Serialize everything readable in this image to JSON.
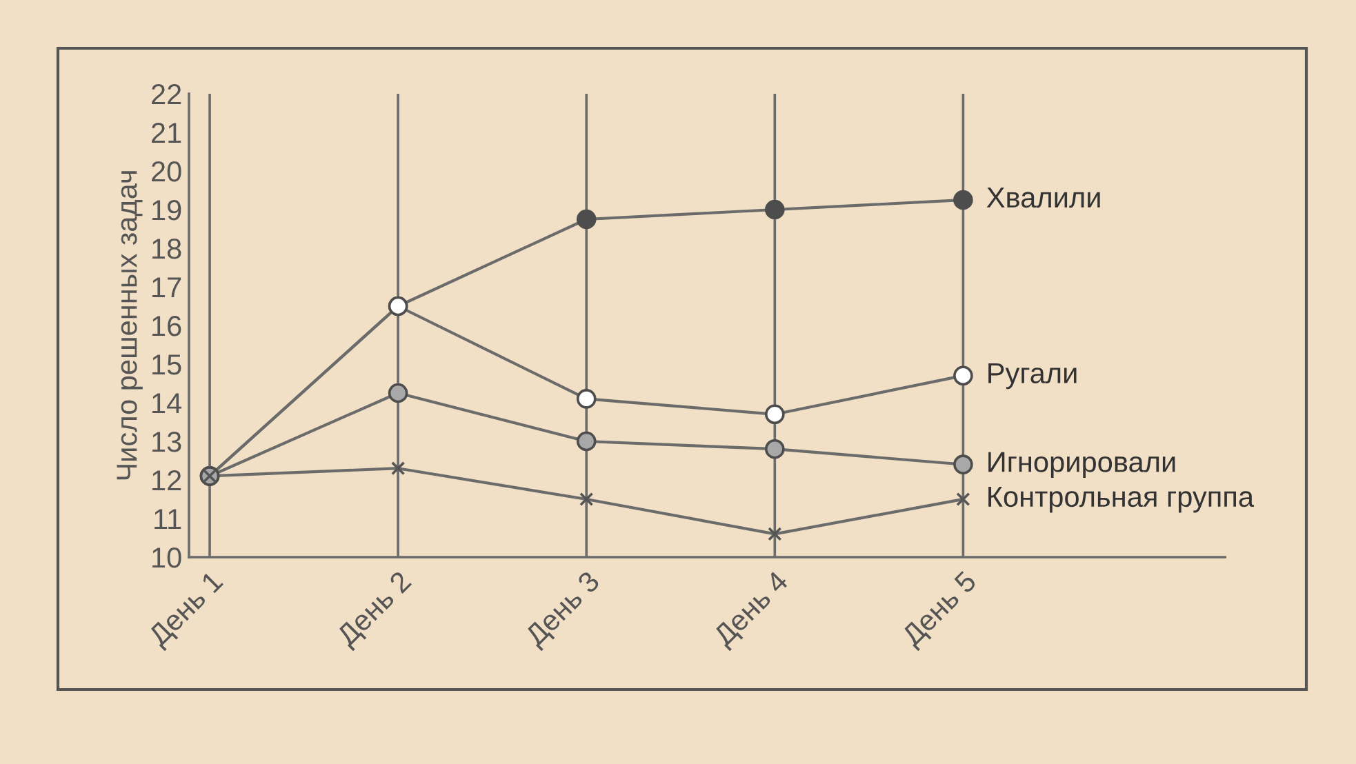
{
  "chart_data": {
    "type": "line",
    "ylabel": "Число решенных задач",
    "categories": [
      "День 1",
      "День 2",
      "День 3",
      "День 4",
      "День 5"
    ],
    "series": [
      {
        "name": "Хвалили",
        "color": "#4d4d4d",
        "marker": "circle",
        "values": [
          12.1,
          16.5,
          18.75,
          19.0,
          19.25
        ]
      },
      {
        "name": "Ругали",
        "color": "#ffffff",
        "marker": "circle",
        "values": [
          12.1,
          16.5,
          14.1,
          13.7,
          14.7
        ]
      },
      {
        "name": "Игнорировали",
        "color": "#a8a8a8",
        "marker": "circle",
        "values": [
          12.1,
          14.25,
          13.0,
          12.8,
          12.4
        ]
      },
      {
        "name": "Контрольная группа",
        "color": "#555555",
        "marker": "cross",
        "values": [
          12.1,
          12.3,
          11.5,
          10.6,
          11.5
        ]
      }
    ],
    "ylim": [
      10,
      22
    ],
    "yticks": [
      10,
      11,
      12,
      13,
      14,
      15,
      16,
      17,
      18,
      19,
      20,
      21,
      22
    ],
    "grid": "x",
    "legend": false
  }
}
